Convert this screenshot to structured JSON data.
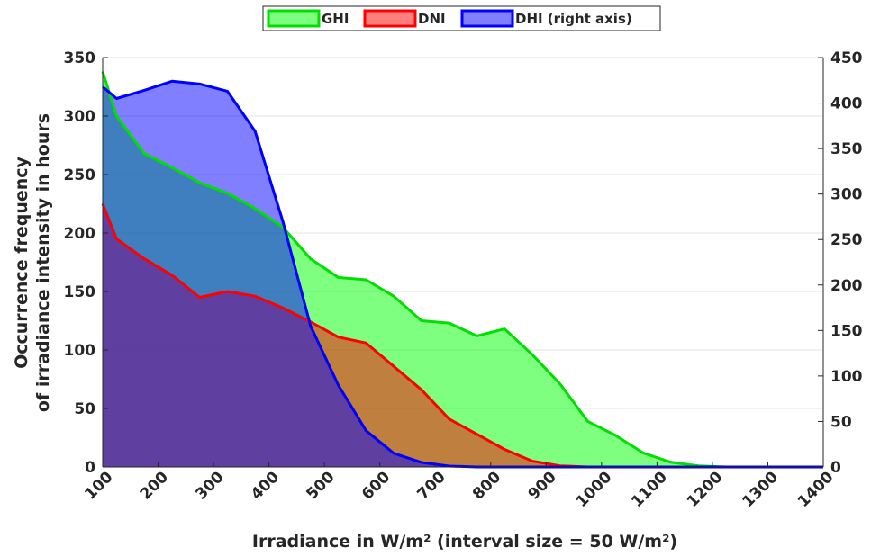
{
  "chart_data": {
    "type": "area",
    "xlabel": "Irradiance in W/m² (interval size = 50 W/m²)",
    "ylabel_line1": "Occurrence frequency",
    "ylabel_line2": "of irradiance intensity in hours",
    "xlim": [
      100,
      1400
    ],
    "ylim_left": [
      0,
      350
    ],
    "ylim_right": [
      0,
      450
    ],
    "xticks": [
      "100",
      "200",
      "300",
      "400",
      "500",
      "600",
      "700",
      "800",
      "900",
      "1000",
      "1100",
      "1200",
      "1300",
      "1400"
    ],
    "yticks_left": [
      "0",
      "50",
      "100",
      "150",
      "200",
      "250",
      "300",
      "350"
    ],
    "yticks_right": [
      "0",
      "50",
      "100",
      "150",
      "200",
      "250",
      "300",
      "350",
      "400",
      "450"
    ],
    "grid": "horizontal",
    "legend_position": "top-center",
    "series": [
      {
        "name": "GHI",
        "axis": "left",
        "fill_color": "#00ff00",
        "line_color": "#00e000",
        "x": [
          100,
          125,
          175,
          225,
          275,
          325,
          375,
          425,
          475,
          525,
          575,
          625,
          675,
          725,
          775,
          825,
          875,
          925,
          975,
          1025,
          1075,
          1125,
          1175,
          1225,
          1275,
          1325,
          1375,
          1400
        ],
        "values": [
          338,
          300,
          268,
          256,
          243,
          234,
          221,
          205,
          178,
          162,
          160,
          146,
          125,
          123,
          112,
          118,
          96,
          71,
          39,
          27,
          12,
          4,
          1,
          0,
          0,
          0,
          0,
          0
        ]
      },
      {
        "name": "DNI",
        "axis": "left",
        "fill_color": "#ff0000",
        "line_color": "#ff0000",
        "x": [
          100,
          125,
          175,
          225,
          275,
          325,
          375,
          425,
          475,
          525,
          575,
          625,
          675,
          725,
          775,
          825,
          875,
          925,
          975,
          1025,
          1400
        ],
        "values": [
          225,
          195,
          178,
          164,
          145,
          150,
          146,
          136,
          124,
          111,
          106,
          86,
          66,
          41,
          28,
          15,
          5,
          1,
          0,
          0,
          0
        ]
      },
      {
        "name": "DHI (right axis)",
        "axis": "right",
        "fill_color": "#0000ff",
        "line_color": "#0000ff",
        "x": [
          100,
          125,
          175,
          225,
          275,
          325,
          375,
          425,
          475,
          525,
          575,
          625,
          675,
          725,
          775,
          825,
          875,
          1400
        ],
        "values": [
          418,
          405,
          414,
          424,
          421,
          413,
          369,
          270,
          155,
          90,
          40,
          15,
          5,
          1,
          0,
          0,
          0,
          0
        ]
      }
    ]
  }
}
